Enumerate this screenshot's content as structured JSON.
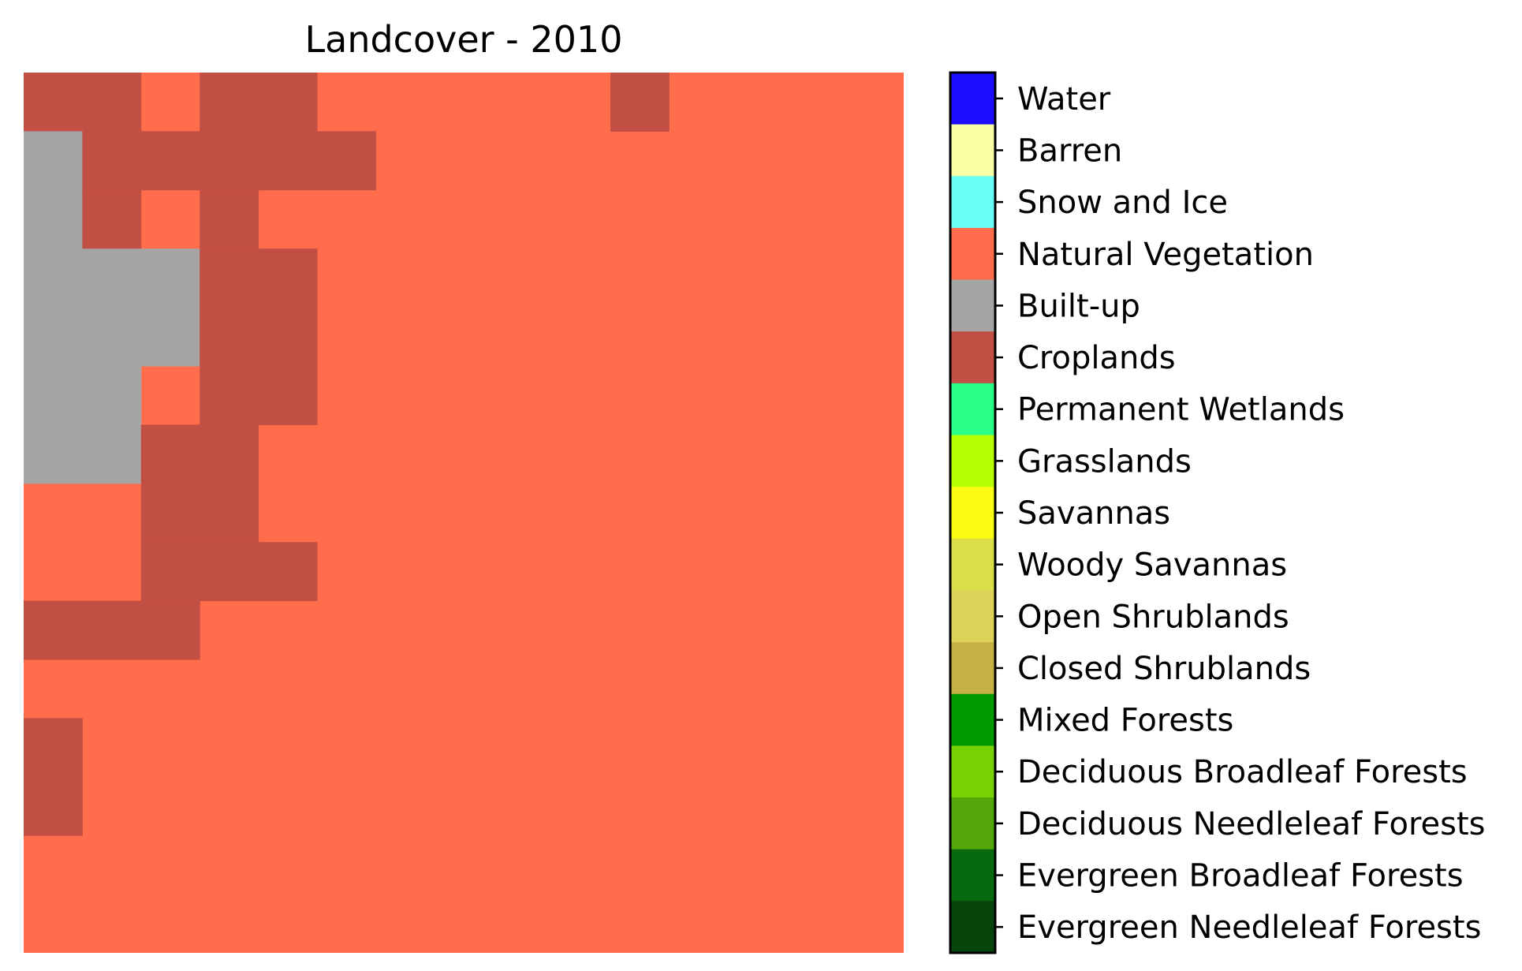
{
  "figure": {
    "title": "Landcover - 2010"
  },
  "map": {
    "background_class": "Natural Vegetation",
    "grid": {
      "cols": 15,
      "rows": 15,
      "cells": [
        {
          "class": "Croplands",
          "col": 0,
          "row": 0,
          "w": 2,
          "h": 1
        },
        {
          "class": "Croplands",
          "col": 3,
          "row": 0,
          "w": 2,
          "h": 1
        },
        {
          "class": "Croplands",
          "col": 10,
          "row": 0,
          "w": 1,
          "h": 1
        },
        {
          "class": "Built-up",
          "col": 0,
          "row": 1,
          "w": 1,
          "h": 2
        },
        {
          "class": "Croplands",
          "col": 1,
          "row": 1,
          "w": 5,
          "h": 1
        },
        {
          "class": "Croplands",
          "col": 1,
          "row": 2,
          "w": 1,
          "h": 1
        },
        {
          "class": "Croplands",
          "col": 3,
          "row": 2,
          "w": 1,
          "h": 1
        },
        {
          "class": "Built-up",
          "col": 0,
          "row": 3,
          "w": 3,
          "h": 2
        },
        {
          "class": "Croplands",
          "col": 3,
          "row": 3,
          "w": 2,
          "h": 2
        },
        {
          "class": "Built-up",
          "col": 0,
          "row": 5,
          "w": 2,
          "h": 2
        },
        {
          "class": "Croplands",
          "col": 3,
          "row": 5,
          "w": 2,
          "h": 1
        },
        {
          "class": "Croplands",
          "col": 2,
          "row": 6,
          "w": 2,
          "h": 2
        },
        {
          "class": "Croplands",
          "col": 2,
          "row": 8,
          "w": 3,
          "h": 1
        },
        {
          "class": "Croplands",
          "col": 0,
          "row": 9,
          "w": 3,
          "h": 1
        },
        {
          "class": "Croplands",
          "col": 0,
          "row": 11,
          "w": 1,
          "h": 2
        }
      ]
    }
  },
  "colorbar": {
    "classes": [
      {
        "label": "Water",
        "color": "#1c0dff"
      },
      {
        "label": "Barren",
        "color": "#f9ffa4"
      },
      {
        "label": "Snow and Ice",
        "color": "#69fff8"
      },
      {
        "label": "Natural Vegetation",
        "color": "#ff6d4c"
      },
      {
        "label": "Built-up",
        "color": "#a5a5a5"
      },
      {
        "label": "Croplands",
        "color": "#c24f44"
      },
      {
        "label": "Permanent Wetlands",
        "color": "#27ff87"
      },
      {
        "label": "Grasslands",
        "color": "#b6ff05"
      },
      {
        "label": "Savannas",
        "color": "#fcfc13"
      },
      {
        "label": "Woody Savannas",
        "color": "#dade48"
      },
      {
        "label": "Open Shrublands",
        "color": "#dcd159"
      },
      {
        "label": "Closed Shrublands",
        "color": "#c6b044"
      },
      {
        "label": "Mixed Forests",
        "color": "#009900"
      },
      {
        "label": "Deciduous Broadleaf Forests",
        "color": "#78d203"
      },
      {
        "label": "Deciduous Needleleaf Forests",
        "color": "#54a708"
      },
      {
        "label": "Evergreen Broadleaf Forests",
        "color": "#086a10"
      },
      {
        "label": "Evergreen Needleleaf Forests",
        "color": "#05450a"
      }
    ]
  }
}
